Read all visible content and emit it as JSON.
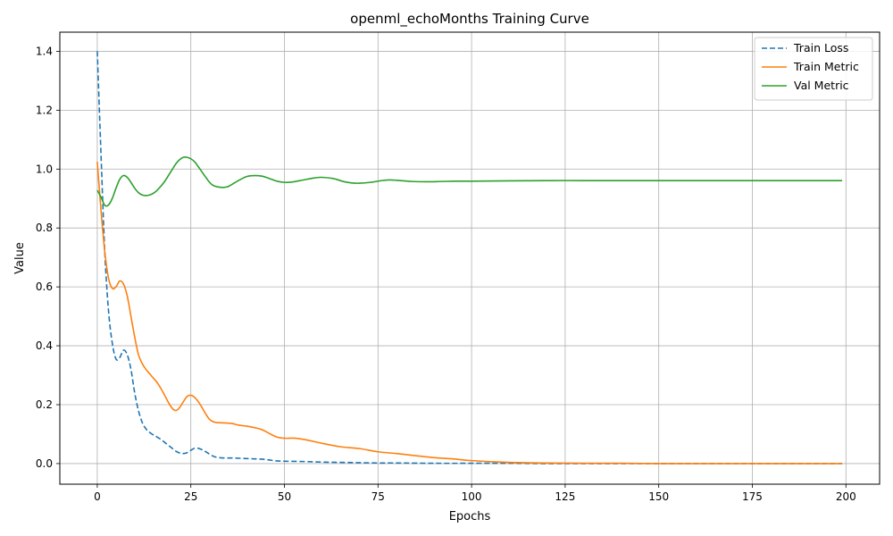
{
  "chart_data": {
    "type": "line",
    "title": "openml_echoMonths Training Curve",
    "xlabel": "Epochs",
    "ylabel": "Value",
    "xlim": [
      -10,
      209
    ],
    "ylim": [
      -0.07,
      1.465
    ],
    "xticks": [
      0,
      25,
      50,
      75,
      100,
      125,
      150,
      175,
      200
    ],
    "xtick_labels": [
      "0",
      "25",
      "50",
      "75",
      "100",
      "125",
      "150",
      "175",
      "200"
    ],
    "yticks": [
      0.0,
      0.2,
      0.4,
      0.6,
      0.8,
      1.0,
      1.2,
      1.4
    ],
    "ytick_labels": [
      "0.0",
      "0.2",
      "0.4",
      "0.6",
      "0.8",
      "1.0",
      "1.2",
      "1.4"
    ],
    "grid": true,
    "legend_position": "top-right",
    "series": [
      {
        "name": "Train Loss",
        "color": "#1f77b4",
        "dash": "dashed",
        "x": [
          0,
          1,
          2,
          3,
          4,
          5,
          6,
          7,
          8,
          9,
          10,
          11,
          12,
          13,
          14,
          15,
          16,
          17,
          18,
          19,
          20,
          21,
          22,
          23,
          24,
          25,
          26,
          27,
          28,
          29,
          30,
          31,
          32,
          34,
          36,
          38,
          40,
          42,
          44,
          46,
          48,
          50,
          55,
          60,
          65,
          70,
          75,
          80,
          90,
          100,
          110,
          120,
          130,
          140,
          150,
          160,
          170,
          180,
          190,
          199
        ],
        "y": [
          1.4,
          1.05,
          0.72,
          0.52,
          0.41,
          0.355,
          0.36,
          0.385,
          0.37,
          0.32,
          0.24,
          0.18,
          0.14,
          0.118,
          0.106,
          0.097,
          0.09,
          0.082,
          0.072,
          0.062,
          0.052,
          0.042,
          0.036,
          0.034,
          0.037,
          0.045,
          0.052,
          0.052,
          0.047,
          0.04,
          0.032,
          0.025,
          0.021,
          0.019,
          0.019,
          0.018,
          0.017,
          0.016,
          0.015,
          0.012,
          0.009,
          0.008,
          0.007,
          0.005,
          0.004,
          0.003,
          0.002,
          0.002,
          0.001,
          0.001,
          0.001,
          0.0,
          0.0,
          0.0,
          0.0,
          0.0,
          0.0,
          0.0,
          0.0,
          0.0
        ]
      },
      {
        "name": "Train Metric",
        "color": "#ff7f0e",
        "dash": "solid",
        "x": [
          0,
          1,
          2,
          3,
          4,
          5,
          6,
          7,
          8,
          9,
          10,
          11,
          12,
          13,
          14,
          15,
          16,
          17,
          18,
          19,
          20,
          21,
          22,
          23,
          24,
          25,
          26,
          27,
          28,
          29,
          30,
          31,
          32,
          34,
          36,
          38,
          40,
          42,
          44,
          46,
          48,
          50,
          53,
          56,
          60,
          65,
          70,
          75,
          80,
          85,
          90,
          95,
          100,
          110,
          120,
          130,
          140,
          150,
          160,
          170,
          180,
          190,
          199
        ],
        "y": [
          1.025,
          0.86,
          0.72,
          0.63,
          0.595,
          0.6,
          0.62,
          0.61,
          0.57,
          0.5,
          0.43,
          0.37,
          0.34,
          0.32,
          0.305,
          0.29,
          0.275,
          0.255,
          0.232,
          0.208,
          0.188,
          0.18,
          0.19,
          0.21,
          0.228,
          0.232,
          0.225,
          0.21,
          0.19,
          0.168,
          0.15,
          0.142,
          0.139,
          0.138,
          0.136,
          0.13,
          0.127,
          0.122,
          0.115,
          0.102,
          0.09,
          0.086,
          0.086,
          0.08,
          0.069,
          0.057,
          0.051,
          0.04,
          0.034,
          0.027,
          0.02,
          0.016,
          0.01,
          0.004,
          0.002,
          0.001,
          0.001,
          0.0,
          0.0,
          0.0,
          0.0,
          0.0,
          0.0
        ]
      },
      {
        "name": "Val Metric",
        "color": "#2ca02c",
        "dash": "solid",
        "x": [
          0,
          1,
          2,
          3,
          4,
          5,
          6,
          7,
          8,
          9,
          10,
          11,
          12,
          13,
          14,
          15,
          16,
          17,
          18,
          19,
          20,
          21,
          22,
          23,
          24,
          25,
          26,
          27,
          28,
          29,
          30,
          31,
          32,
          33,
          34,
          35,
          36,
          38,
          40,
          42,
          44,
          46,
          48,
          50,
          52,
          55,
          58,
          60,
          63,
          66,
          68,
          70,
          73,
          76,
          78,
          80,
          84,
          88,
          92,
          96,
          100,
          110,
          120,
          130,
          140,
          150,
          160,
          170,
          180,
          190,
          199
        ],
        "y": [
          0.928,
          0.905,
          0.877,
          0.878,
          0.9,
          0.935,
          0.965,
          0.978,
          0.972,
          0.955,
          0.935,
          0.92,
          0.912,
          0.91,
          0.912,
          0.918,
          0.928,
          0.942,
          0.958,
          0.978,
          0.998,
          1.018,
          1.032,
          1.04,
          1.04,
          1.035,
          1.025,
          1.008,
          0.99,
          0.972,
          0.955,
          0.944,
          0.94,
          0.938,
          0.938,
          0.941,
          0.948,
          0.963,
          0.975,
          0.978,
          0.976,
          0.968,
          0.959,
          0.955,
          0.956,
          0.963,
          0.97,
          0.972,
          0.968,
          0.957,
          0.953,
          0.952,
          0.955,
          0.961,
          0.963,
          0.962,
          0.958,
          0.957,
          0.958,
          0.959,
          0.959,
          0.96,
          0.961,
          0.961,
          0.961,
          0.961,
          0.961,
          0.961,
          0.961,
          0.961,
          0.961
        ]
      }
    ]
  }
}
